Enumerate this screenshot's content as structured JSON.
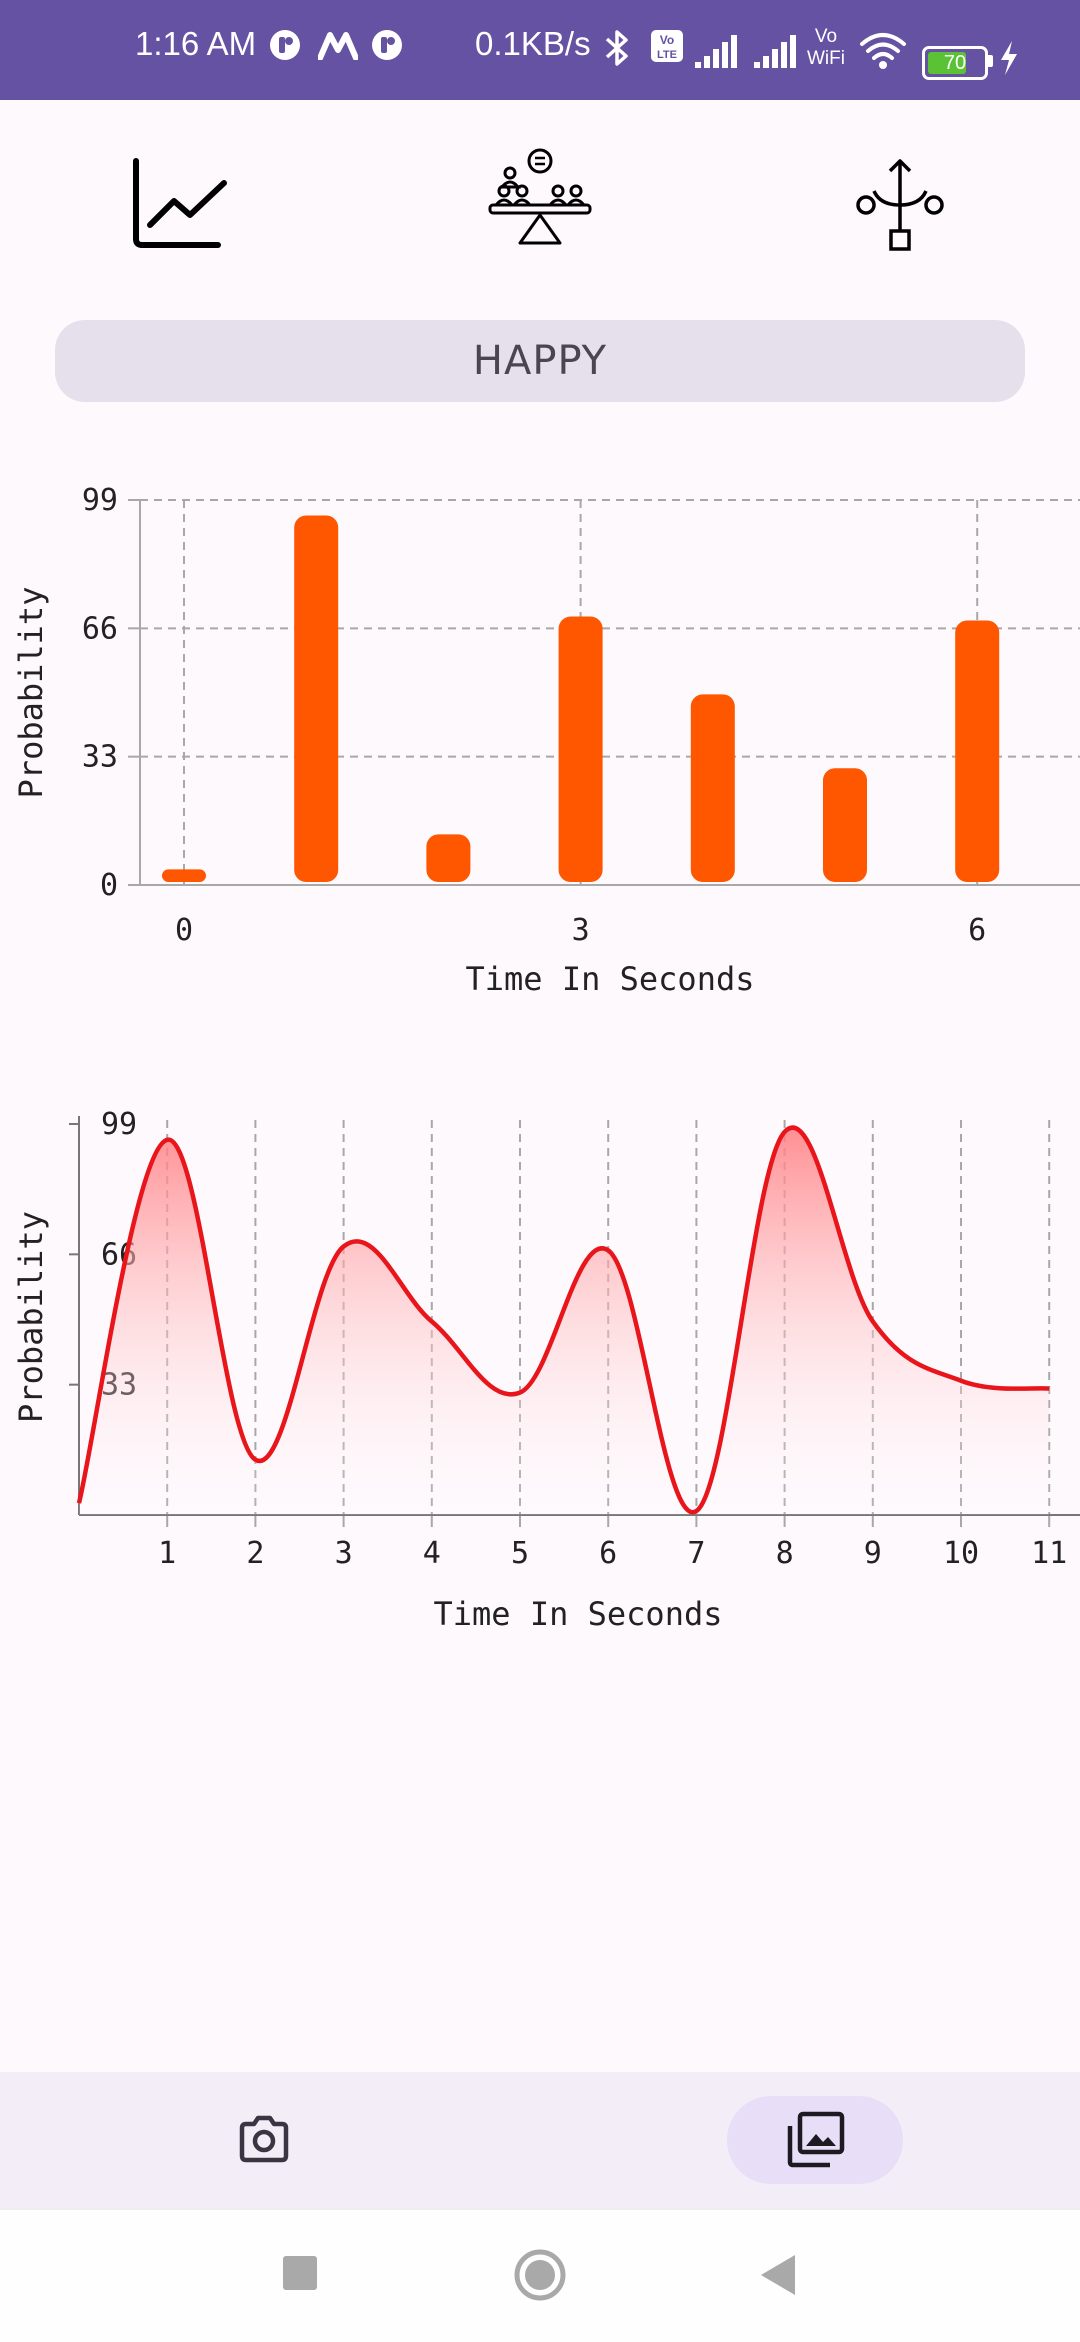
{
  "status_bar": {
    "time": "1:16 AM",
    "net_speed": "0.1KB/s",
    "battery": "70"
  },
  "toolbar": {
    "items": [
      {
        "icon": "line-chart-icon"
      },
      {
        "icon": "balance-people-icon"
      },
      {
        "icon": "branch-network-icon"
      }
    ]
  },
  "emotion": {
    "label": "HAPPY"
  },
  "chart_data": [
    {
      "type": "bar",
      "x": [
        0,
        1,
        2,
        3,
        4,
        5,
        6
      ],
      "values": [
        3,
        94,
        12,
        68,
        48,
        29,
        67
      ],
      "xticks": [
        "0",
        "3",
        "6"
      ],
      "yticks": [
        "0",
        "33",
        "66",
        "99"
      ],
      "xlabel": "Time In Seconds",
      "ylabel": "Probability",
      "ylim": [
        0,
        99
      ],
      "grid": true,
      "color": "#FF5600"
    },
    {
      "type": "area",
      "x": [
        0,
        1,
        2,
        3,
        4,
        5,
        6,
        7,
        8,
        9,
        10,
        11
      ],
      "values": [
        3,
        95,
        14,
        68,
        49,
        31,
        67,
        1,
        97,
        49,
        34,
        32
      ],
      "xticks": [
        "1",
        "2",
        "3",
        "4",
        "5",
        "6",
        "7",
        "8",
        "9",
        "10",
        "11"
      ],
      "yticks": [
        "33",
        "66",
        "99"
      ],
      "xlabel": "Time In Seconds",
      "ylabel": "Probability",
      "ylim": [
        0,
        99
      ],
      "grid": true,
      "color": "#E8151B"
    }
  ],
  "bottom_nav": {
    "items": [
      {
        "icon": "camera-icon",
        "active": false
      },
      {
        "icon": "photo-library-icon",
        "active": true
      }
    ]
  }
}
